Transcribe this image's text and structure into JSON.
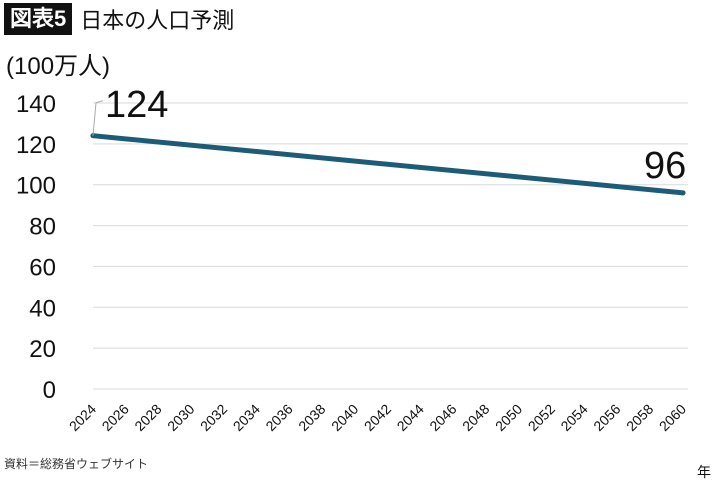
{
  "header": {
    "figure_label": "図表5",
    "title": "日本の人口予測"
  },
  "unit_label": "(100万人)",
  "x_unit_label": "年",
  "source": "資料＝総務省ウェブサイト",
  "chart_data": {
    "type": "line",
    "title": "日本の人口予測",
    "ylabel": "(100万人)",
    "xlabel": "年",
    "x": [
      2024,
      2060
    ],
    "y": [
      124,
      96
    ],
    "data_labels": [
      "124",
      "96"
    ],
    "xticks": [
      "2024",
      "2026",
      "2028",
      "2030",
      "2032",
      "2034",
      "2036",
      "2038",
      "2040",
      "2042",
      "2044",
      "2046",
      "2048",
      "2050",
      "2052",
      "2054",
      "2056",
      "2058",
      "2060"
    ],
    "yticks": [
      "0",
      "20",
      "40",
      "60",
      "80",
      "100",
      "120",
      "140"
    ],
    "xlim": [
      2024,
      2060
    ],
    "ylim": [
      0,
      140
    ],
    "grid": true,
    "line_color": "#1d5c78",
    "grid_color": "#d9d9d9"
  }
}
